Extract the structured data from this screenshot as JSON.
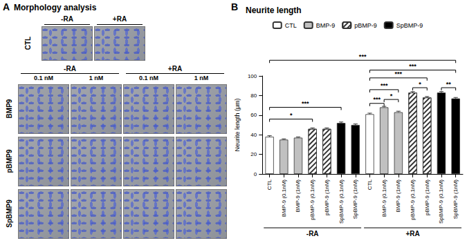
{
  "figure": {
    "panel_labels": [
      "A",
      "B"
    ]
  },
  "morphology": {
    "title": "Morphology analysis",
    "control": {
      "row": "CTL",
      "columns": [
        "-RA",
        "+RA"
      ]
    },
    "treatment": {
      "groups": [
        "-RA",
        "+RA"
      ],
      "doses": [
        "0.1 nM",
        "1 nM"
      ],
      "rows": [
        "BMP9",
        "pBMP9",
        "SpBMP9"
      ]
    }
  },
  "chart_data": {
    "type": "bar",
    "title": "Neurite length",
    "ylabel": "Neurite length (μm)",
    "categories": [
      "CTL",
      "BMP-9 (0.1nM)",
      "BMP-9 (1nM)",
      "pBMP-9 (0.1nM)",
      "pBMP-9 (1nM)",
      "SpBMP-9 (0.1nM)",
      "SpBMP-9 (1nM)",
      "CTL",
      "BMP-9 (0.1nM)",
      "BMP-9 (1nM)",
      "pBMP-9 (0.1nM)",
      "pBMP-9 (1nM)",
      "SpBMP-9 (0.1nM)",
      "SpBMP-9 (1nM)"
    ],
    "groups": [
      {
        "label": "-RA",
        "from": 0,
        "to": 6
      },
      {
        "label": "+RA",
        "from": 7,
        "to": 13
      }
    ],
    "series": [
      {
        "name": "CTL",
        "color": "#ffffff",
        "values": [
          38,
          null,
          null,
          null,
          null,
          null,
          null,
          61,
          null,
          null,
          null,
          null,
          null,
          null
        ],
        "errors": [
          1,
          null,
          null,
          null,
          null,
          null,
          null,
          1,
          null,
          null,
          null,
          null,
          null,
          null
        ]
      },
      {
        "name": "BMP-9",
        "color": "#c0c0c0",
        "values": [
          null,
          35,
          37,
          null,
          null,
          null,
          null,
          null,
          68,
          63,
          null,
          null,
          null,
          null
        ],
        "errors": [
          null,
          0.8,
          0.8,
          null,
          null,
          null,
          null,
          null,
          1,
          1,
          null,
          null,
          null,
          null
        ]
      },
      {
        "name": "pBMP-9",
        "color": "#ffffff",
        "marker": "hatched",
        "values": [
          null,
          null,
          null,
          46,
          46,
          null,
          null,
          null,
          null,
          null,
          83,
          78,
          null,
          null
        ],
        "errors": [
          null,
          null,
          null,
          1,
          1,
          null,
          null,
          null,
          null,
          null,
          1,
          1,
          null,
          null
        ]
      },
      {
        "name": "SpBMP-9",
        "color": "#000000",
        "values": [
          null,
          null,
          null,
          null,
          null,
          52,
          50,
          null,
          null,
          null,
          null,
          null,
          83,
          77
        ],
        "errors": [
          null,
          null,
          null,
          null,
          null,
          1,
          1,
          null,
          null,
          null,
          null,
          null,
          1,
          1
        ]
      }
    ],
    "ylim": [
      0,
      100
    ],
    "yticks": [
      0,
      20,
      40,
      60,
      80,
      100
    ],
    "grid": false,
    "legend": "top",
    "annotations": [
      {
        "from": 0,
        "to": 3,
        "y": 56,
        "label": "*"
      },
      {
        "from": 0,
        "to": 5,
        "y": 68,
        "label": "***"
      },
      {
        "from": 7,
        "to": 8,
        "y": 72,
        "label": "***"
      },
      {
        "from": 8,
        "to": 9,
        "y": 76,
        "label": "*"
      },
      {
        "from": 7,
        "to": 9,
        "y": 86,
        "label": "***"
      },
      {
        "from": 10,
        "to": 11,
        "y": 88,
        "label": "*"
      },
      {
        "from": 12,
        "to": 13,
        "y": 88,
        "label": "**"
      },
      {
        "from": 7,
        "to": 11,
        "y": 98,
        "label": "***"
      },
      {
        "from": 7,
        "to": 13,
        "y": 106,
        "label": "***"
      },
      {
        "from": 0,
        "to": 13,
        "y": 116,
        "label": "***"
      }
    ]
  }
}
